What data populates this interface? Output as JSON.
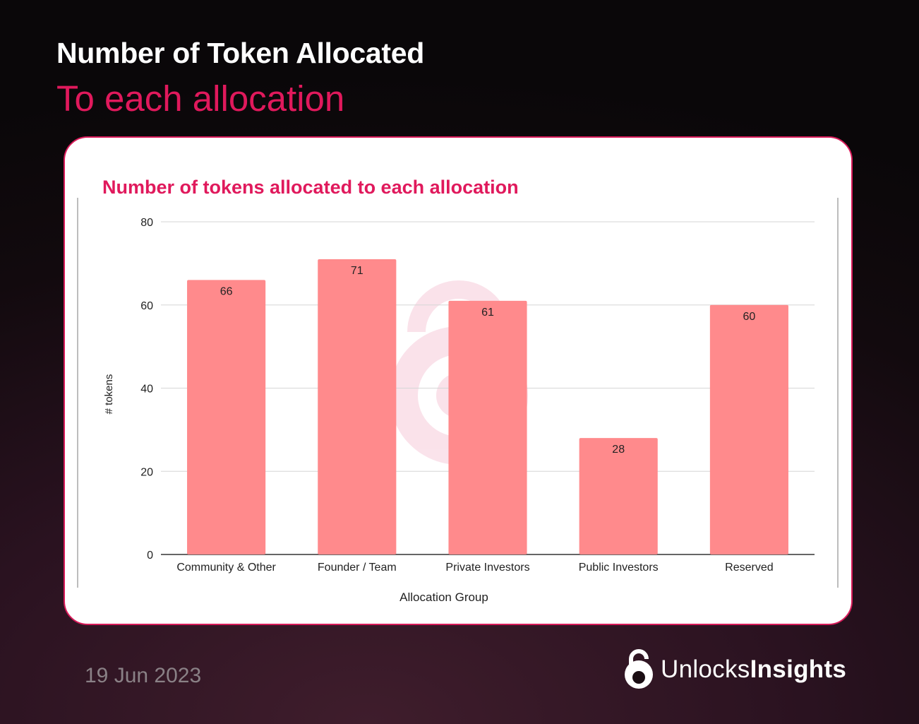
{
  "header": {
    "title": "Number of Token Allocated",
    "subtitle": "To each allocation"
  },
  "chart_data": {
    "type": "bar",
    "title": "Number of tokens allocated to each allocation",
    "xlabel": "Allocation Group",
    "ylabel": "# tokens",
    "categories": [
      "Community & Other",
      "Founder / Team",
      "Private Investors",
      "Public Investors",
      "Reserved"
    ],
    "values": [
      66,
      71,
      61,
      28,
      60
    ],
    "ylim": [
      0,
      80
    ],
    "yticks": [
      0,
      20,
      40,
      60,
      80
    ],
    "bar_color": "#ff8a8c",
    "grid": true
  },
  "footer": {
    "date": "19 Jun 2023",
    "brand_regular": "Unlocks",
    "brand_bold": "Insights"
  },
  "colors": {
    "accent": "#e0195c",
    "card_border": "#d81b5a"
  }
}
